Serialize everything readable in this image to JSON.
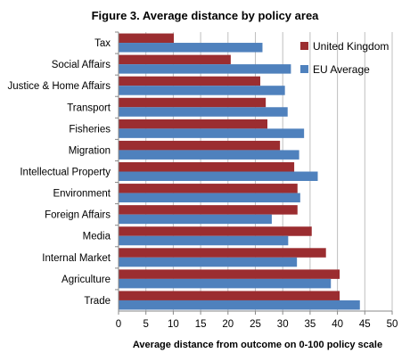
{
  "chart_data": {
    "type": "bar",
    "orientation": "horizontal",
    "title": "Figure 3. Average distance by policy area",
    "xlabel": "Average distance from outcome on 0-100 policy scale",
    "ylabel": "",
    "xlim": [
      0,
      50
    ],
    "xticks": [
      0,
      5,
      10,
      15,
      20,
      25,
      30,
      35,
      40,
      45,
      50
    ],
    "grid": "vertical",
    "legend_position": "top-right",
    "categories": [
      "Tax",
      "Social Affairs",
      "Justice & Home Affairs",
      "Transport",
      "Fisheries",
      "Migration",
      "Intellectual Property",
      "Environment",
      "Foreign Affairs",
      "Media",
      "Internal Market",
      "Agriculture",
      "Trade"
    ],
    "series": [
      {
        "name": "United Kingdom",
        "color": "#9b2d30",
        "values": [
          10.1,
          20.5,
          25.9,
          26.9,
          27.2,
          29.5,
          32.1,
          32.7,
          32.7,
          35.3,
          37.9,
          40.4,
          40.4
        ]
      },
      {
        "name": "EU Average",
        "color": "#4f81bd",
        "values": [
          26.3,
          31.5,
          30.4,
          30.9,
          33.9,
          33.0,
          36.4,
          33.2,
          28.0,
          31.0,
          32.6,
          38.8,
          44.1
        ]
      }
    ]
  }
}
